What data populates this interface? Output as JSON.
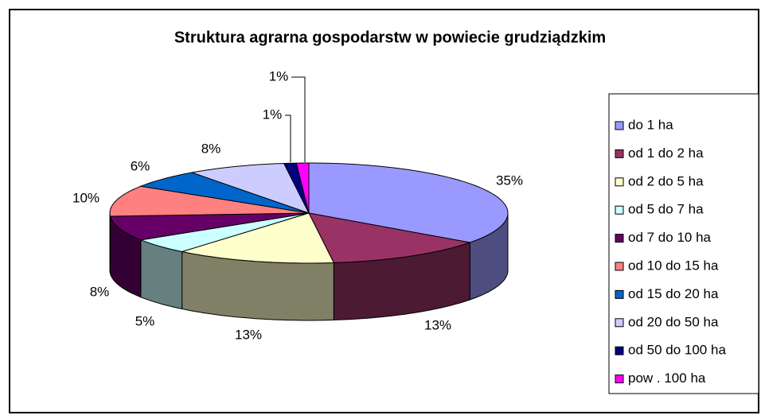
{
  "chart_data": {
    "type": "pie3d",
    "title": "Struktura agrarna gospodarstw w powiecie grudziądzkim",
    "categories": [
      "do 1 ha",
      "od 1 do 2 ha",
      "od 2 do 5 ha",
      "od 5 do 7 ha",
      "od 7 do 10 ha",
      "od 10 do 15 ha",
      "od 15 do 20 ha",
      "od 20 do 50 ha",
      "od 50 do 100 ha",
      "pow . 100 ha"
    ],
    "values": [
      35,
      13,
      13,
      5,
      8,
      10,
      6,
      8,
      1,
      1
    ],
    "value_labels": [
      "35%",
      "13%",
      "13%",
      "5%",
      "8%",
      "10%",
      "6%",
      "8%",
      "1%",
      "1%"
    ],
    "colors": [
      "#9999ff",
      "#993366",
      "#ffffcc",
      "#ccffff",
      "#660066",
      "#ff8080",
      "#0066cc",
      "#ccccff",
      "#000080",
      "#ff00ff"
    ],
    "legend": "right"
  }
}
